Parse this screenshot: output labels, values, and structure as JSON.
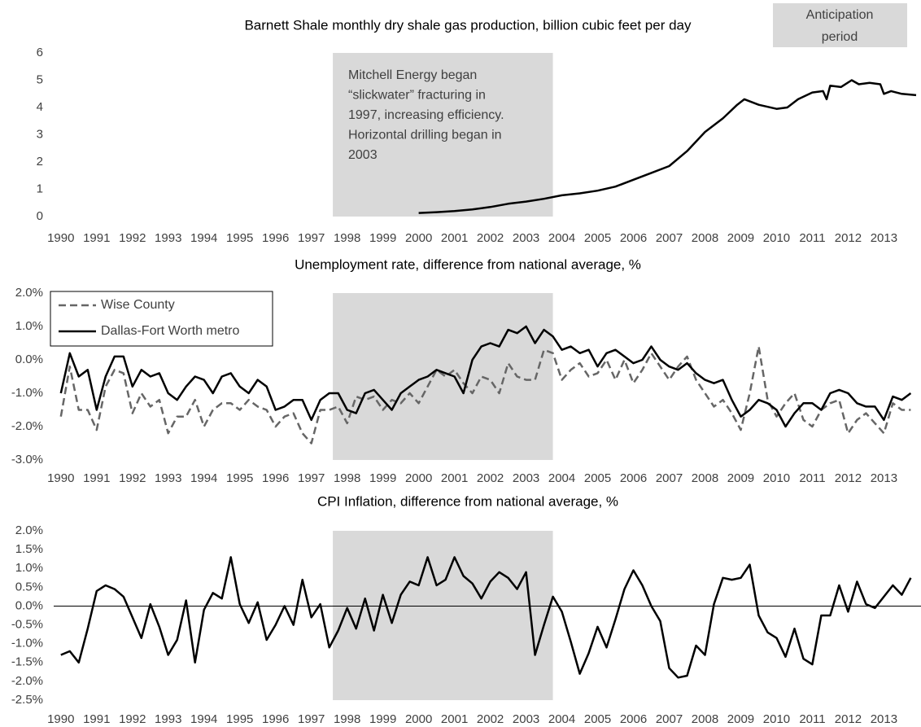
{
  "chart_data": [
    {
      "type": "line",
      "title": "Barnett Shale monthly dry shale gas production, billion cubic feet per day",
      "ylim": [
        0,
        6
      ],
      "yticks": [
        0,
        1,
        2,
        3,
        4,
        5,
        6
      ],
      "xlim": [
        1989.8,
        2013.9
      ],
      "xticks": [
        1990,
        1991,
        1992,
        1993,
        1994,
        1995,
        1996,
        1997,
        1998,
        1999,
        2000,
        2001,
        2002,
        2003,
        2004,
        2005,
        2006,
        2007,
        2008,
        2009,
        2010,
        2011,
        2012,
        2013
      ],
      "shade": [
        1997.6,
        2003.75
      ],
      "shade_label": [
        "Anticipation",
        "period"
      ],
      "annotation": [
        "Mitchell Energy began",
        "“slickwater” fracturing in",
        "1997, increasing efficiency.",
        "Horizontal drilling began in",
        "2003"
      ],
      "x": [
        2000.0,
        2000.5,
        2001.0,
        2001.5,
        2002.0,
        2002.5,
        2003.0,
        2003.5,
        2004.0,
        2004.5,
        2005.0,
        2005.5,
        2006.0,
        2006.5,
        2007.0,
        2007.5,
        2008.0,
        2008.5,
        2008.9,
        2009.1,
        2009.5,
        2010.0,
        2010.3,
        2010.6,
        2011.0,
        2011.3,
        2011.4,
        2011.5,
        2011.8,
        2012.1,
        2012.3,
        2012.6,
        2012.9,
        2013.0,
        2013.2,
        2013.5,
        2013.9
      ],
      "series": [
        {
          "name": "Barnett Shale",
          "color": "#000000",
          "dash": false,
          "values": [
            0.13,
            0.16,
            0.2,
            0.26,
            0.35,
            0.47,
            0.55,
            0.65,
            0.78,
            0.85,
            0.95,
            1.1,
            1.35,
            1.6,
            1.85,
            2.4,
            3.1,
            3.6,
            4.1,
            4.3,
            4.1,
            3.95,
            4.0,
            4.3,
            4.55,
            4.6,
            4.3,
            4.8,
            4.75,
            5.0,
            4.85,
            4.9,
            4.85,
            4.5,
            4.6,
            4.5,
            4.45
          ]
        }
      ]
    },
    {
      "type": "line",
      "title": "Unemployment rate, difference from national average, %",
      "ylim": [
        -3,
        2
      ],
      "yticks": [
        {
          "value": -3,
          "label": "-3.0%"
        },
        {
          "value": -2,
          "label": "-2.0%"
        },
        {
          "value": -1,
          "label": "-1.0%"
        },
        {
          "value": 0,
          "label": "0.0%"
        },
        {
          "value": 1,
          "label": "1.0%"
        },
        {
          "value": 2,
          "label": "2.0%"
        }
      ],
      "xlim": [
        1989.8,
        2013.9
      ],
      "xticks": [
        1990,
        1991,
        1992,
        1993,
        1994,
        1995,
        1996,
        1997,
        1998,
        1999,
        2000,
        2001,
        2002,
        2003,
        2004,
        2005,
        2006,
        2007,
        2008,
        2009,
        2010,
        2011,
        2012,
        2013
      ],
      "shade": [
        1997.6,
        2003.75
      ],
      "legend": "upper left",
      "x": [
        1990,
        1990.25,
        1990.5,
        1990.75,
        1991,
        1991.25,
        1991.5,
        1991.75,
        1992,
        1992.25,
        1992.5,
        1992.75,
        1993,
        1993.25,
        1993.5,
        1993.75,
        1994,
        1994.25,
        1994.5,
        1994.75,
        1995,
        1995.25,
        1995.5,
        1995.75,
        1996,
        1996.25,
        1996.5,
        1996.75,
        1997,
        1997.25,
        1997.5,
        1997.75,
        1998,
        1998.25,
        1998.5,
        1998.75,
        1999,
        1999.25,
        1999.5,
        1999.75,
        2000,
        2000.25,
        2000.5,
        2000.75,
        2001,
        2001.25,
        2001.5,
        2001.75,
        2002,
        2002.25,
        2002.5,
        2002.75,
        2003,
        2003.25,
        2003.5,
        2003.75,
        2004,
        2004.25,
        2004.5,
        2004.75,
        2005,
        2005.25,
        2005.5,
        2005.75,
        2006,
        2006.25,
        2006.5,
        2006.75,
        2007,
        2007.25,
        2007.5,
        2007.75,
        2008,
        2008.25,
        2008.5,
        2008.75,
        2009,
        2009.25,
        2009.5,
        2009.75,
        2010,
        2010.25,
        2010.5,
        2010.75,
        2011,
        2011.25,
        2011.5,
        2011.75,
        2012,
        2012.25,
        2012.5,
        2012.75,
        2013,
        2013.25,
        2013.5,
        2013.75
      ],
      "series": [
        {
          "name": "Wise County",
          "color": "#666666",
          "dash": true,
          "values": [
            -1.7,
            -0.2,
            -1.5,
            -1.5,
            -2.1,
            -0.8,
            -0.3,
            -0.4,
            -1.6,
            -1.0,
            -1.4,
            -1.2,
            -2.2,
            -1.7,
            -1.7,
            -1.2,
            -2.0,
            -1.5,
            -1.3,
            -1.3,
            -1.5,
            -1.2,
            -1.4,
            -1.5,
            -2.0,
            -1.7,
            -1.6,
            -2.2,
            -2.5,
            -1.5,
            -1.5,
            -1.4,
            -1.9,
            -1.1,
            -1.2,
            -1.1,
            -1.5,
            -1.2,
            -1.3,
            -1.0,
            -1.3,
            -0.8,
            -0.3,
            -0.5,
            -0.3,
            -0.7,
            -1.0,
            -0.5,
            -0.6,
            -1.0,
            -0.1,
            -0.5,
            -0.6,
            -0.6,
            0.3,
            0.2,
            -0.6,
            -0.3,
            -0.1,
            -0.5,
            -0.4,
            0.0,
            -0.6,
            0.0,
            -0.7,
            -0.3,
            0.2,
            -0.2,
            -0.6,
            -0.2,
            0.1,
            -0.6,
            -1.0,
            -1.4,
            -1.2,
            -1.6,
            -2.1,
            -1.0,
            0.4,
            -1.2,
            -1.7,
            -1.3,
            -1.0,
            -1.8,
            -2.0,
            -1.5,
            -1.3,
            -1.2,
            -2.2,
            -1.8,
            -1.6,
            -1.9,
            -2.2,
            -1.3,
            -1.5,
            -1.5
          ]
        },
        {
          "name": "Dallas-Fort Worth metro",
          "color": "#000000",
          "dash": false,
          "values": [
            -1.0,
            0.2,
            -0.5,
            -0.3,
            -1.5,
            -0.5,
            0.1,
            0.1,
            -0.8,
            -0.3,
            -0.5,
            -0.4,
            -1.0,
            -1.2,
            -0.8,
            -0.5,
            -0.6,
            -1.0,
            -0.5,
            -0.4,
            -0.8,
            -1.0,
            -0.6,
            -0.8,
            -1.5,
            -1.4,
            -1.2,
            -1.2,
            -1.8,
            -1.2,
            -1.0,
            -1.0,
            -1.5,
            -1.6,
            -1.0,
            -0.9,
            -1.2,
            -1.5,
            -1.0,
            -0.8,
            -0.6,
            -0.5,
            -0.3,
            -0.4,
            -0.5,
            -1.0,
            0.0,
            0.4,
            0.5,
            0.4,
            0.9,
            0.8,
            1.0,
            0.5,
            0.9,
            0.7,
            0.3,
            0.4,
            0.2,
            0.3,
            -0.2,
            0.2,
            0.3,
            0.1,
            -0.1,
            0.0,
            0.4,
            0.0,
            -0.2,
            -0.3,
            -0.1,
            -0.4,
            -0.6,
            -0.7,
            -0.6,
            -1.2,
            -1.7,
            -1.5,
            -1.2,
            -1.3,
            -1.5,
            -2.0,
            -1.6,
            -1.3,
            -1.3,
            -1.5,
            -1.0,
            -0.9,
            -1.0,
            -1.3,
            -1.4,
            -1.4,
            -1.8,
            -1.1,
            -1.2,
            -1.0
          ]
        }
      ]
    },
    {
      "type": "line",
      "title": "CPI Inflation, difference from national average, %",
      "ylim": [
        -2.5,
        2
      ],
      "yticks": [
        {
          "value": -2.5,
          "label": "-2.5%"
        },
        {
          "value": -2,
          "label": "-2.0%"
        },
        {
          "value": -1.5,
          "label": "-1.5%"
        },
        {
          "value": -1,
          "label": "-1.0%"
        },
        {
          "value": -0.5,
          "label": "-0.5%"
        },
        {
          "value": 0,
          "label": "0.0%"
        },
        {
          "value": 0.5,
          "label": "0.5%"
        },
        {
          "value": 1,
          "label": "1.0%"
        },
        {
          "value": 1.5,
          "label": "1.5%"
        },
        {
          "value": 2,
          "label": "2.0%"
        }
      ],
      "xlim": [
        1989.8,
        2013.9
      ],
      "xticks": [
        1990,
        1991,
        1992,
        1993,
        1994,
        1995,
        1996,
        1997,
        1998,
        1999,
        2000,
        2001,
        2002,
        2003,
        2004,
        2005,
        2006,
        2007,
        2008,
        2009,
        2010,
        2011,
        2012,
        2013
      ],
      "shade": [
        1997.6,
        2003.75
      ],
      "zero_line": true,
      "x": [
        1990,
        1990.25,
        1990.5,
        1990.75,
        1991,
        1991.25,
        1991.5,
        1991.75,
        1992,
        1992.25,
        1992.5,
        1992.75,
        1993,
        1993.25,
        1993.5,
        1993.75,
        1994,
        1994.25,
        1994.5,
        1994.75,
        1995,
        1995.25,
        1995.5,
        1995.75,
        1996,
        1996.25,
        1996.5,
        1996.75,
        1997,
        1997.25,
        1997.5,
        1997.75,
        1998,
        1998.25,
        1998.5,
        1998.75,
        1999,
        1999.25,
        1999.5,
        1999.75,
        2000,
        2000.25,
        2000.5,
        2000.75,
        2001,
        2001.25,
        2001.5,
        2001.75,
        2002,
        2002.25,
        2002.5,
        2002.75,
        2003,
        2003.25,
        2003.5,
        2003.75,
        2004,
        2004.25,
        2004.5,
        2004.75,
        2005,
        2005.25,
        2005.5,
        2005.75,
        2006,
        2006.25,
        2006.5,
        2006.75,
        2007,
        2007.25,
        2007.5,
        2007.75,
        2008,
        2008.25,
        2008.5,
        2008.75,
        2009,
        2009.25,
        2009.5,
        2009.75,
        2010,
        2010.25,
        2010.5,
        2010.75,
        2011,
        2011.25,
        2011.5,
        2011.75,
        2012,
        2012.25,
        2012.5,
        2012.75,
        2013,
        2013.25,
        2013.5,
        2013.75
      ],
      "series": [
        {
          "name": "CPI",
          "color": "#000000",
          "dash": false,
          "values": [
            -1.3,
            -1.2,
            -1.5,
            -0.6,
            0.4,
            0.55,
            0.45,
            0.25,
            -0.3,
            -0.85,
            0.05,
            -0.55,
            -1.3,
            -0.9,
            0.15,
            -1.5,
            -0.1,
            0.35,
            0.2,
            1.3,
            0.05,
            -0.45,
            0.1,
            -0.9,
            -0.5,
            0.0,
            -0.5,
            0.7,
            -0.3,
            0.05,
            -1.1,
            -0.65,
            -0.05,
            -0.6,
            0.2,
            -0.65,
            0.3,
            -0.45,
            0.3,
            0.65,
            0.55,
            1.3,
            0.55,
            0.7,
            1.3,
            0.8,
            0.6,
            0.2,
            0.65,
            0.9,
            0.75,
            0.45,
            0.9,
            -1.3,
            -0.5,
            0.25,
            -0.15,
            -0.95,
            -1.8,
            -1.25,
            -0.55,
            -1.1,
            -0.35,
            0.45,
            0.95,
            0.55,
            0.0,
            -0.4,
            -1.65,
            -1.9,
            -1.85,
            -1.05,
            -1.3,
            0.05,
            0.75,
            0.7,
            0.75,
            1.1,
            -0.25,
            -0.7,
            -0.85,
            -1.35,
            -0.6,
            -1.4,
            -1.55,
            -0.25,
            -0.25,
            0.55,
            -0.15,
            0.65,
            0.05,
            -0.05,
            0.25,
            0.55,
            0.3,
            0.75
          ]
        }
      ]
    }
  ]
}
